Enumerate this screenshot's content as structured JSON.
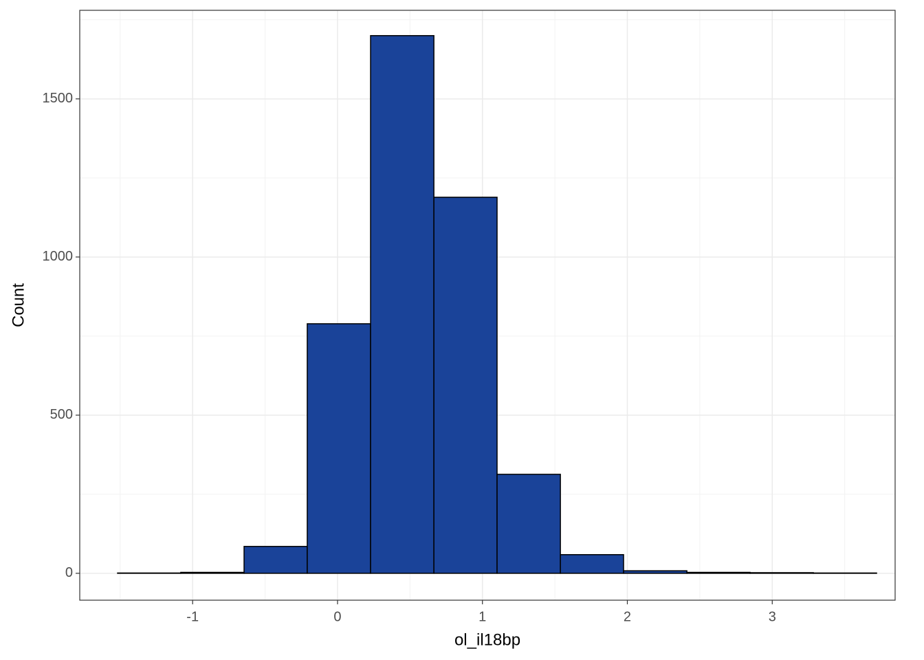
{
  "chart_data": {
    "type": "histogram",
    "xlabel": "ol_il18bp",
    "ylabel": "Count",
    "bins": [
      -1.518,
      -1.082,
      -0.645,
      -0.209,
      0.228,
      0.665,
      1.101,
      1.538,
      1.974,
      2.411,
      2.847,
      3.284,
      3.72
    ],
    "counts": [
      1,
      3,
      85,
      789,
      1700,
      1189,
      313,
      59,
      8,
      3,
      2,
      1
    ],
    "color": "#1a4399",
    "edgecolor": "#000000",
    "xlim": [
      -1.779,
      3.848
    ],
    "ylim": [
      -85,
      1780
    ],
    "xticks": [
      -1,
      0,
      1,
      2,
      3
    ],
    "yticks": [
      0,
      500,
      1000,
      1500
    ],
    "xminor": [
      -1.5,
      -0.5,
      0.5,
      1.5,
      2.5,
      3.5
    ],
    "yminor": [
      250,
      750,
      1250,
      1750
    ],
    "grid": true
  }
}
